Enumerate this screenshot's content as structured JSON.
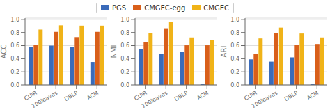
{
  "chart_data": [
    {
      "type": "bar",
      "ylabel": "ACC",
      "categories": [
        "CUIR",
        "100leaves",
        "DBLP",
        "ACM"
      ],
      "series": [
        {
          "name": "PGS",
          "color": "#3a6bba",
          "values": [
            0.575,
            0.6,
            0.58,
            0.35
          ]
        },
        {
          "name": "CMGEC-egg",
          "color": "#d95f1a",
          "values": [
            0.61,
            0.81,
            0.73,
            0.81
          ]
        },
        {
          "name": "CMGEC",
          "color": "#f0b318",
          "values": [
            0.845,
            0.91,
            0.905,
            0.905
          ]
        }
      ],
      "ylim": [
        0,
        1.02
      ],
      "yticks": [
        {
          "value": 0,
          "label": "0.0"
        },
        0.2,
        0.4,
        0.6,
        0.8,
        {
          "value": 1.0,
          "label": "1.0"
        }
      ],
      "grid": true
    },
    {
      "type": "bar",
      "ylabel": "NMI",
      "categories": [
        "CUIR",
        "100leaves",
        "DBLP",
        "ACM"
      ],
      "series": [
        {
          "name": "PGS",
          "color": "#3a6bba",
          "values": [
            0.545,
            0.475,
            0.5,
            0.01
          ]
        },
        {
          "name": "CMGEC-egg",
          "color": "#d95f1a",
          "values": [
            0.655,
            0.865,
            0.605,
            0.605
          ]
        },
        {
          "name": "CMGEC",
          "color": "#f0b318",
          "values": [
            0.79,
            0.965,
            0.725,
            0.69
          ]
        }
      ],
      "ylim": [
        0,
        1.02
      ],
      "yticks": [
        {
          "value": 0,
          "label": "0.0"
        },
        0.2,
        0.4,
        0.6,
        0.8,
        {
          "value": 1.0,
          "label": "1.0"
        }
      ],
      "grid": true,
      "legend": "top"
    },
    {
      "type": "bar",
      "ylabel": "ARI",
      "categories": [
        "CUIR",
        "100leaves",
        "DBLP",
        "ACM"
      ],
      "series": [
        {
          "name": "PGS",
          "color": "#3a6bba",
          "values": [
            0.39,
            0.355,
            0.42,
            0.01
          ]
        },
        {
          "name": "CMGEC-egg",
          "color": "#d95f1a",
          "values": [
            0.47,
            0.795,
            0.61,
            0.625
          ]
        },
        {
          "name": "CMGEC",
          "color": "#f0b318",
          "values": [
            0.71,
            0.875,
            0.785,
            0.725
          ]
        }
      ],
      "ylim": [
        0,
        1.02
      ],
      "yticks": [
        {
          "value": 0,
          "label": "0.0"
        },
        0.2,
        0.4,
        0.6,
        0.8,
        {
          "value": 1.0,
          "label": "1.0"
        }
      ],
      "grid": true
    }
  ]
}
